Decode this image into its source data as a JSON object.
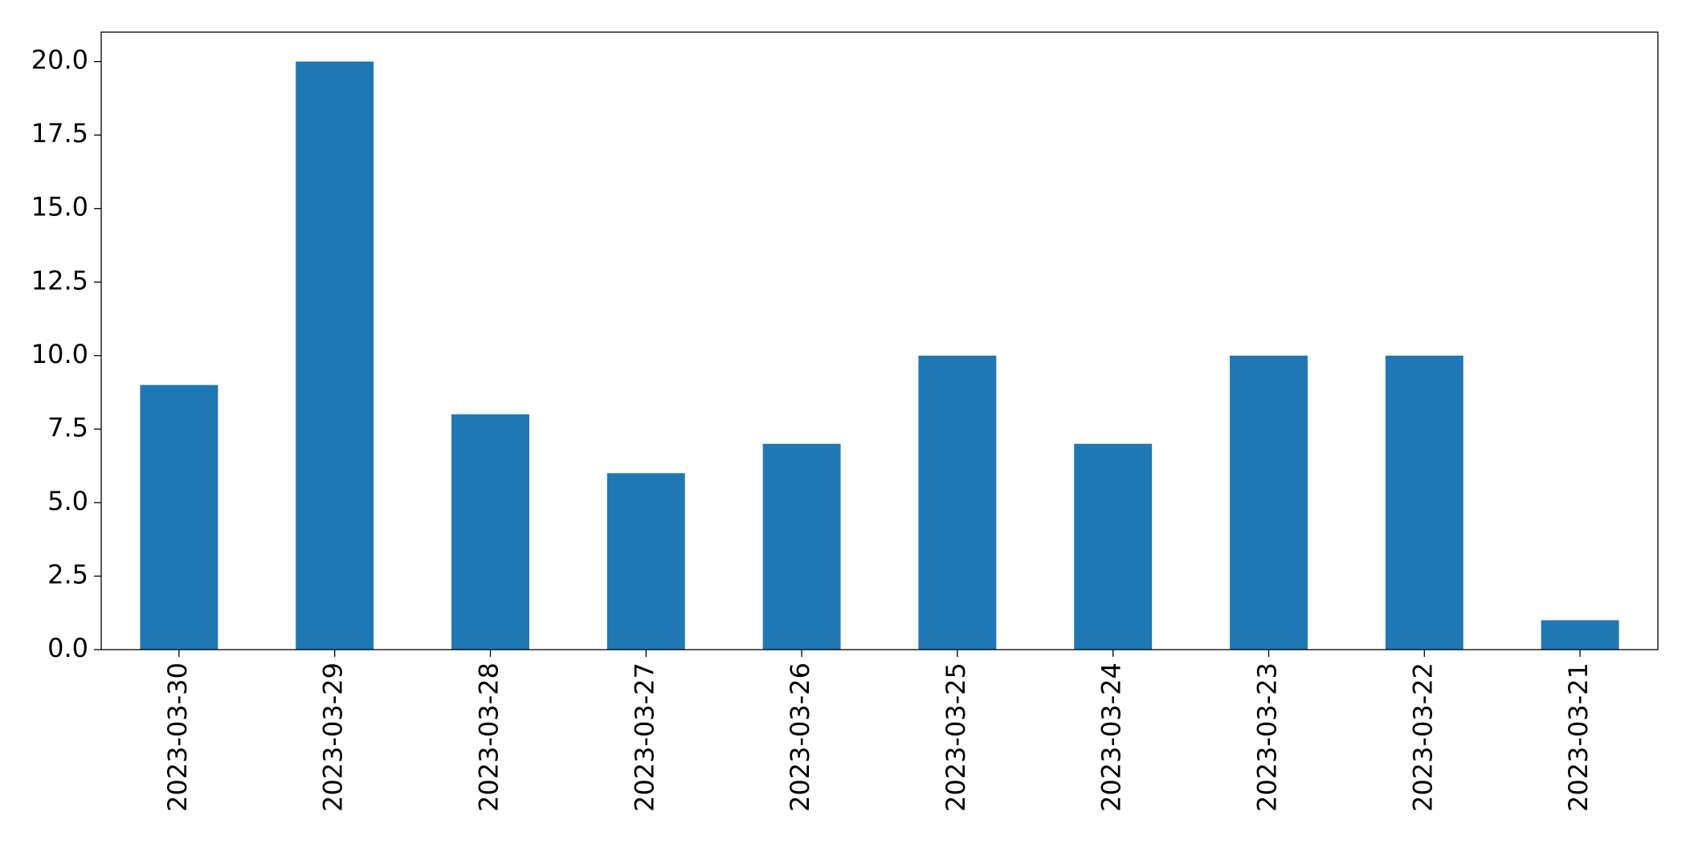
{
  "chart_data": {
    "type": "bar",
    "categories": [
      "2023-03-30",
      "2023-03-29",
      "2023-03-28",
      "2023-03-27",
      "2023-03-26",
      "2023-03-25",
      "2023-03-24",
      "2023-03-23",
      "2023-03-22",
      "2023-03-21"
    ],
    "values": [
      9,
      20,
      8,
      6,
      7,
      10,
      7,
      10,
      10,
      1
    ],
    "color": "#1f77b4",
    "ylim": [
      0,
      21
    ],
    "yticks": [
      {
        "value": 0,
        "label": "0.0"
      },
      2.5,
      {
        "value": 5,
        "label": "5.0"
      },
      7.5,
      {
        "value": 10,
        "label": "10.0"
      },
      12.5,
      {
        "value": 15,
        "label": "15.0"
      },
      17.5,
      {
        "value": 20,
        "label": "20.0"
      }
    ],
    "grid": false
  }
}
